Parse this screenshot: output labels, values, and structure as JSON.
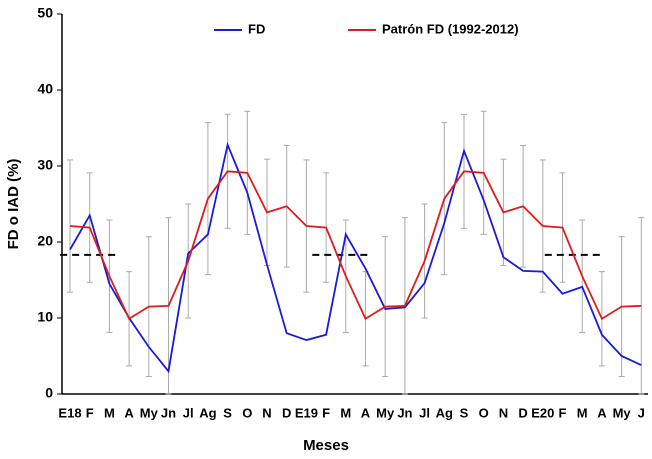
{
  "chart_data": {
    "type": "line",
    "x_label": "Meses",
    "y_label": "FD o IAD (%)",
    "categories": [
      "E18",
      "F",
      "M",
      "A",
      "My",
      "Jn",
      "Jl",
      "Ag",
      "S",
      "O",
      "N",
      "D",
      "E19",
      "F",
      "M",
      "A",
      "My",
      "Jn",
      "Jl",
      "Ag",
      "S",
      "O",
      "N",
      "D",
      "E20",
      "F",
      "M",
      "A",
      "My",
      "J"
    ],
    "ylim": [
      0,
      50
    ],
    "yticks": [
      0,
      10,
      20,
      30,
      40,
      50
    ],
    "series": [
      {
        "name": "FD",
        "color": "#1a1adb",
        "values": [
          19,
          23.5,
          14.5,
          10,
          6.2,
          3,
          18.5,
          21,
          32.8,
          26.5,
          17,
          8,
          7.1,
          7.8,
          21,
          16.5,
          11.2,
          11.4,
          14.6,
          22.5,
          32,
          25.5,
          18,
          16.2,
          16.1,
          13.2,
          14.1,
          7.8,
          5,
          3.8
        ]
      },
      {
        "name": "Patrón FD (1992-2012)",
        "color": "#e01b1b",
        "values": [
          22.1,
          21.9,
          15.5,
          9.9,
          11.5,
          11.6,
          17.5,
          25.7,
          29.3,
          29.1,
          23.9,
          24.7,
          22.1,
          21.9,
          15.5,
          9.9,
          11.5,
          11.6,
          17.5,
          25.7,
          29.3,
          29.1,
          23.9,
          24.7,
          22.1,
          21.9,
          15.5,
          9.9,
          11.5,
          11.6
        ],
        "errors": [
          8.7,
          7.2,
          7.4,
          6.2,
          9.2,
          11.6,
          7.5,
          10,
          7.5,
          8.1,
          7,
          8,
          8.7,
          7.2,
          7.4,
          6.2,
          9.2,
          11.6,
          7.5,
          10,
          7.5,
          8.1,
          7,
          8,
          8.7,
          7.2,
          7.4,
          6.2,
          9.2,
          11.6
        ]
      }
    ],
    "dashed_lines": [
      {
        "y": 18.3,
        "x": [
          -0.5,
          2.5
        ]
      },
      {
        "y": 18.3,
        "x": [
          12.3,
          15.2
        ]
      },
      {
        "y": 18.3,
        "x": [
          24.1,
          26.9
        ]
      }
    ],
    "error_color": "#aaaaaa",
    "legend": "top"
  }
}
